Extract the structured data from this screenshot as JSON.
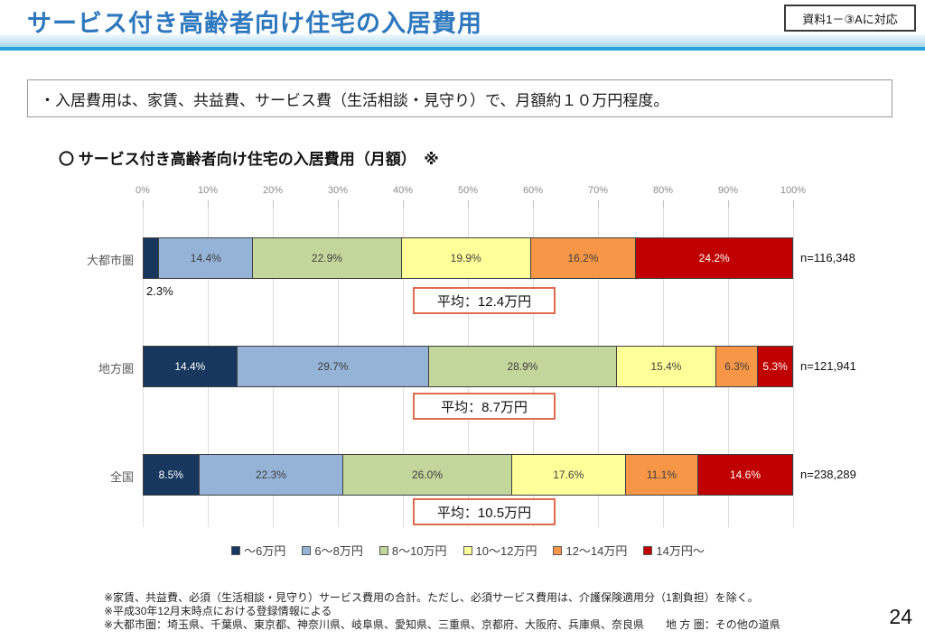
{
  "header": {
    "title": "サービス付き高齢者向け住宅の入居費用",
    "reference_tag": "資料1－③Aに対応"
  },
  "summary_box": {
    "text": "・入居費用は、家賃、共益費、サービス費（生活相談・見守り）で、月額約１０万円程度。"
  },
  "chart_heading": "〇 サービス付き高齢者向け住宅の入居費用（月額）　※",
  "chart_data": {
    "type": "bar",
    "orientation": "horizontal",
    "stacked": true,
    "unit": "percent",
    "x_axis": {
      "ticks": [
        "0%",
        "10%",
        "20%",
        "30%",
        "40%",
        "50%",
        "60%",
        "70%",
        "80%",
        "90%",
        "100%"
      ],
      "range": [
        0,
        100
      ],
      "grid": true
    },
    "legend": {
      "position": "bottom",
      "entries": [
        "～6万円",
        "6～8万円",
        "8～10万円",
        "10～12万円",
        "12～14万円",
        "14万円～"
      ]
    },
    "colors": [
      "#17375E",
      "#95B3D7",
      "#C3D69B",
      "#FFFF99",
      "#F79646",
      "#C00000"
    ],
    "label_text_colors": [
      "#FFFFFF",
      "#3F3F3F",
      "#3F3F3F",
      "#3F3F3F",
      "#3F3F3F",
      "#FFFFFF"
    ],
    "categories": [
      "大都市圏",
      "地方圏",
      "全国"
    ],
    "rows": [
      {
        "category": "大都市圏",
        "values": [
          2.3,
          14.4,
          22.9,
          19.9,
          16.2,
          24.2
        ],
        "n_label": "n=116,348",
        "average_label": "平均：12.4万円",
        "outside_label": "2.3%"
      },
      {
        "category": "地方圏",
        "values": [
          14.4,
          29.7,
          28.9,
          15.4,
          6.3,
          5.3
        ],
        "n_label": "n=121,941",
        "average_label": "平均：8.7万円"
      },
      {
        "category": "全国",
        "values": [
          8.5,
          22.3,
          26.0,
          17.6,
          11.1,
          14.6
        ],
        "n_label": "n=238,289",
        "average_label": "平均：10.5万円"
      }
    ]
  },
  "footnotes": [
    "※家賃、共益費、必須（生活相談・見守り）サービス費用の合計。ただし、必須サービス費用は、介護保険適用分（1割負担）を除く。",
    "※平成30年12月末時点における登録情報による",
    "※大都市圏：埼玉県、千葉県、東京都、神奈川県、岐阜県、愛知県、三重県、京都府、大阪府、兵庫県、奈良県　　地 方 圏：その他の道県"
  ],
  "page_number": "24"
}
